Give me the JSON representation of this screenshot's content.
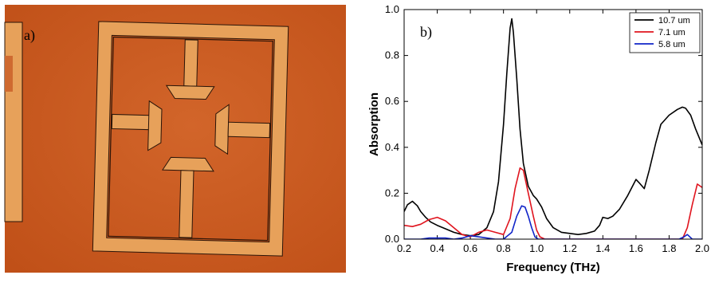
{
  "panel_a": {
    "label": "a)",
    "colors": {
      "substrate": "#cd5b20",
      "metal": "#e7a15a",
      "outline": "#2a1408"
    }
  },
  "chart_data": {
    "type": "line",
    "panel_label": "b)",
    "title": "",
    "xlabel": "Frequency (THz)",
    "ylabel": "Absorption",
    "xlim": [
      0.2,
      2.0
    ],
    "ylim": [
      0.0,
      1.0
    ],
    "xticks": [
      0.2,
      0.4,
      0.6,
      0.8,
      1.0,
      1.2,
      1.4,
      1.6,
      1.8,
      2.0
    ],
    "xtick_labels": [
      "0.2",
      "0.4",
      "0.6",
      "0.8",
      "1.0",
      "1.2",
      "1.4",
      "1.6",
      "1.8",
      "2.0"
    ],
    "yticks": [
      0.0,
      0.2,
      0.4,
      0.6,
      0.8,
      1.0
    ],
    "ytick_labels": [
      "0.0",
      "0.2",
      "0.4",
      "0.6",
      "0.8",
      "1.0"
    ],
    "grid": false,
    "legend_position": "top-right",
    "series": [
      {
        "name": "10.7 um",
        "color": "#000000",
        "x": [
          0.2,
          0.22,
          0.25,
          0.28,
          0.3,
          0.33,
          0.36,
          0.4,
          0.45,
          0.5,
          0.55,
          0.6,
          0.65,
          0.7,
          0.74,
          0.77,
          0.8,
          0.82,
          0.84,
          0.85,
          0.86,
          0.88,
          0.9,
          0.92,
          0.95,
          0.98,
          1.0,
          1.03,
          1.06,
          1.1,
          1.15,
          1.2,
          1.25,
          1.3,
          1.35,
          1.38,
          1.4,
          1.43,
          1.46,
          1.5,
          1.55,
          1.6,
          1.62,
          1.65,
          1.68,
          1.72,
          1.75,
          1.8,
          1.85,
          1.88,
          1.9,
          1.93,
          1.96,
          2.0
        ],
        "y": [
          0.12,
          0.15,
          0.165,
          0.145,
          0.12,
          0.095,
          0.075,
          0.06,
          0.045,
          0.03,
          0.02,
          0.015,
          0.02,
          0.05,
          0.12,
          0.25,
          0.5,
          0.72,
          0.92,
          0.96,
          0.9,
          0.7,
          0.48,
          0.33,
          0.23,
          0.19,
          0.175,
          0.14,
          0.09,
          0.05,
          0.03,
          0.025,
          0.02,
          0.025,
          0.035,
          0.06,
          0.095,
          0.09,
          0.1,
          0.13,
          0.19,
          0.26,
          0.245,
          0.22,
          0.3,
          0.42,
          0.5,
          0.54,
          0.565,
          0.575,
          0.57,
          0.54,
          0.48,
          0.41
        ]
      },
      {
        "name": "7.1 um",
        "color": "#e0141e",
        "x": [
          0.2,
          0.25,
          0.3,
          0.35,
          0.4,
          0.45,
          0.5,
          0.55,
          0.6,
          0.65,
          0.7,
          0.75,
          0.8,
          0.84,
          0.87,
          0.9,
          0.92,
          0.95,
          0.98,
          1.0,
          1.02,
          1.05,
          1.1,
          1.2,
          1.3,
          1.4,
          1.5,
          1.6,
          1.7,
          1.8,
          1.88,
          1.91,
          1.94,
          1.97,
          2.0
        ],
        "y": [
          0.06,
          0.055,
          0.065,
          0.085,
          0.095,
          0.08,
          0.05,
          0.02,
          0.01,
          0.03,
          0.04,
          0.03,
          0.02,
          0.09,
          0.22,
          0.31,
          0.3,
          0.2,
          0.1,
          0.04,
          0.01,
          0.0,
          0.0,
          0.0,
          0.0,
          0.0,
          0.0,
          0.0,
          0.0,
          0.0,
          0.0,
          0.05,
          0.15,
          0.24,
          0.225
        ]
      },
      {
        "name": "5.8 um",
        "color": "#1024c8",
        "x": [
          0.2,
          0.3,
          0.35,
          0.4,
          0.45,
          0.5,
          0.55,
          0.6,
          0.65,
          0.7,
          0.75,
          0.8,
          0.85,
          0.88,
          0.91,
          0.93,
          0.95,
          0.97,
          0.99,
          1.01,
          1.05,
          1.2,
          1.4,
          1.6,
          1.8,
          1.86,
          1.89,
          1.91,
          1.94,
          2.0
        ],
        "y": [
          0.0,
          0.0,
          0.005,
          0.005,
          0.005,
          0.0,
          0.005,
          0.015,
          0.01,
          0.005,
          0.0,
          0.0,
          0.03,
          0.1,
          0.145,
          0.14,
          0.1,
          0.05,
          0.01,
          0.0,
          0.0,
          0.0,
          0.0,
          0.0,
          0.0,
          0.0,
          0.01,
          0.02,
          0.0,
          0.0
        ]
      }
    ]
  }
}
